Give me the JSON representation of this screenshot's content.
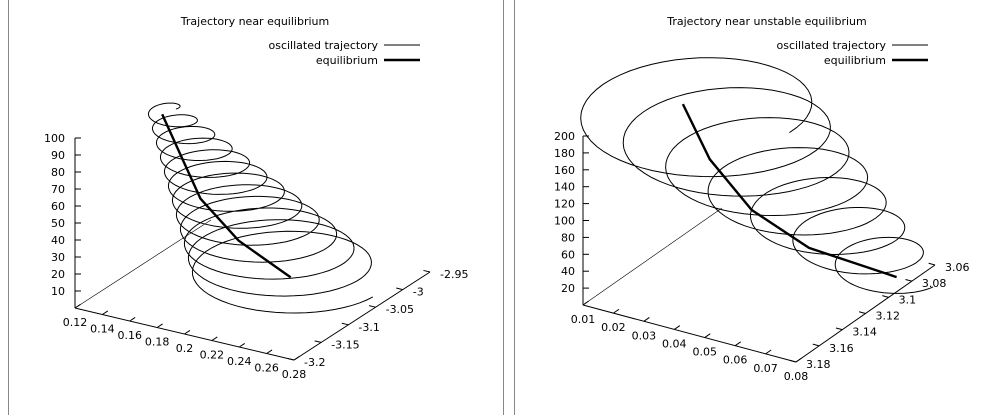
{
  "chart_data": [
    {
      "type": "line3d",
      "title": "Trajectory near equilibrium",
      "series": [
        {
          "name": "oscillated trajectory",
          "style": "thin",
          "color": "#000000"
        },
        {
          "name": "equilibrium",
          "style": "thick",
          "color": "#000000"
        }
      ],
      "x_ticks": [
        "0.12",
        "0.14",
        "0.16",
        "0.18",
        "0.2",
        "0.22",
        "0.24",
        "0.26",
        "0.28"
      ],
      "y_ticks": [
        "-2.95",
        "-3",
        "-3.05",
        "-3.1",
        "-3.15",
        "-3.2"
      ],
      "z_ticks": [
        "10",
        "20",
        "30",
        "40",
        "50",
        "60",
        "70",
        "80",
        "90",
        "100"
      ],
      "xlim": [
        0.12,
        0.28
      ],
      "ylim": [
        -3.2,
        -2.95
      ],
      "zlim": [
        0,
        100
      ],
      "oscillation": {
        "turns": 12,
        "z_range": [
          0,
          100
        ],
        "center_x_range": [
          0.21,
          0.14
        ],
        "center_y_range": [
          -3.12,
          -3.06
        ],
        "radius_range": [
          0.06,
          0.01
        ]
      },
      "equilibrium_points": [
        {
          "x": 0.21,
          "y": -3.12,
          "z": 0
        },
        {
          "x": 0.18,
          "y": -3.1,
          "z": 20
        },
        {
          "x": 0.16,
          "y": -3.08,
          "z": 45
        },
        {
          "x": 0.15,
          "y": -3.07,
          "z": 70
        },
        {
          "x": 0.14,
          "y": -3.06,
          "z": 95
        }
      ],
      "legend_position": "top-right"
    },
    {
      "type": "line3d",
      "title": "Trajectory near unstable equilibrium",
      "series": [
        {
          "name": "oscillated trajectory",
          "style": "thin",
          "color": "#000000"
        },
        {
          "name": "equilibrium",
          "style": "thick",
          "color": "#000000"
        }
      ],
      "x_ticks": [
        "0.01",
        "0.02",
        "0.03",
        "0.04",
        "0.05",
        "0.06",
        "0.07",
        "0.08"
      ],
      "y_ticks": [
        "3.06",
        "3.08",
        "3.1",
        "3.12",
        "3.14",
        "3.16",
        "3.18"
      ],
      "z_ticks": [
        "20",
        "40",
        "60",
        "80",
        "100",
        "120",
        "140",
        "160",
        "180",
        "200"
      ],
      "xlim": [
        0.01,
        0.08
      ],
      "ylim": [
        3.06,
        3.18
      ],
      "zlim": [
        0,
        200
      ],
      "oscillation": {
        "turns": 7,
        "z_range": [
          0,
          190
        ],
        "center_x_range": [
          0.075,
          0.02
        ],
        "center_y_range": [
          3.08,
          3.12
        ],
        "radius_range": [
          0.012,
          0.035
        ]
      },
      "equilibrium_points": [
        {
          "x": 0.075,
          "y": 3.08,
          "z": 0
        },
        {
          "x": 0.05,
          "y": 3.09,
          "z": 20
        },
        {
          "x": 0.035,
          "y": 3.1,
          "z": 60
        },
        {
          "x": 0.025,
          "y": 3.11,
          "z": 120
        },
        {
          "x": 0.02,
          "y": 3.12,
          "z": 190
        }
      ],
      "legend_position": "top-right"
    }
  ]
}
